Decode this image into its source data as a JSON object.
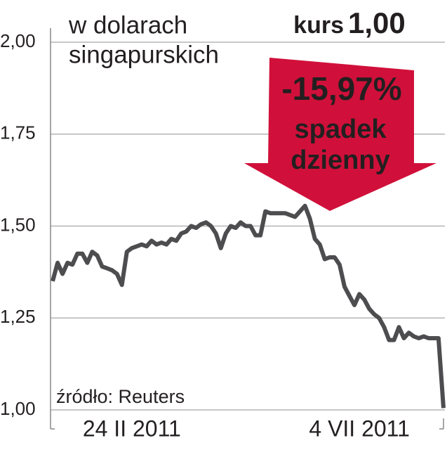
{
  "chart_data": {
    "type": "line",
    "title_lines": [
      "w dolarach",
      "singapurskich"
    ],
    "rate_label": "kurs",
    "rate_value": "1,00",
    "change_label": "-15,97%",
    "change_text": [
      "spadek",
      "dzienny"
    ],
    "source": "źródło: Reuters",
    "categories": [
      null,
      null,
      null,
      null,
      null,
      null,
      null,
      null,
      null,
      null,
      null,
      null,
      null,
      null,
      null,
      null,
      "24 II 2011",
      null,
      null,
      null,
      null,
      null,
      null,
      null,
      null,
      null,
      null,
      null,
      null,
      null,
      null,
      null,
      null,
      null,
      null,
      null,
      null,
      null,
      null,
      null,
      null,
      null,
      null,
      null,
      null,
      null,
      null,
      null,
      null,
      null,
      null,
      null,
      null,
      null,
      null,
      null,
      null,
      null,
      null,
      null,
      null,
      null,
      "4 VII 2011",
      null,
      null,
      null,
      null,
      null,
      null,
      null,
      null,
      null,
      null,
      null,
      null,
      null,
      null,
      null,
      null,
      null
    ],
    "values": [
      1.35,
      1.4,
      1.37,
      1.4,
      1.395,
      1.425,
      1.425,
      1.4,
      1.43,
      1.42,
      1.39,
      1.385,
      1.38,
      1.37,
      1.34,
      1.43,
      1.44,
      1.445,
      1.45,
      1.445,
      1.46,
      1.45,
      1.455,
      1.45,
      1.465,
      1.46,
      1.48,
      1.485,
      1.5,
      1.495,
      1.505,
      1.51,
      1.5,
      1.48,
      1.44,
      1.48,
      1.5,
      1.495,
      1.51,
      1.5,
      1.5,
      1.475,
      1.475,
      1.54,
      1.535,
      1.535,
      1.535,
      1.535,
      1.53,
      1.525,
      1.54,
      1.555,
      1.52,
      1.465,
      1.45,
      1.41,
      1.415,
      1.415,
      1.395,
      1.335,
      1.31,
      1.285,
      1.315,
      1.3,
      1.275,
      1.26,
      1.25,
      1.225,
      1.19,
      1.19,
      1.225,
      1.195,
      1.21,
      1.2,
      1.195,
      1.2,
      1.195,
      1.195,
      1.195,
      1.005
    ],
    "color": "#4d4d4f",
    "ylim": [
      1,
      2
    ],
    "yticks": [
      {
        "value": 1,
        "label": "1,00"
      },
      {
        "value": 1.25,
        "label": "1,25"
      },
      {
        "value": 1.5,
        "label": "1,50"
      },
      {
        "value": 1.75,
        "label": "1,75"
      },
      {
        "value": 2,
        "label": "2,00"
      }
    ],
    "grid": true,
    "arrow_color": "#d0103a"
  }
}
